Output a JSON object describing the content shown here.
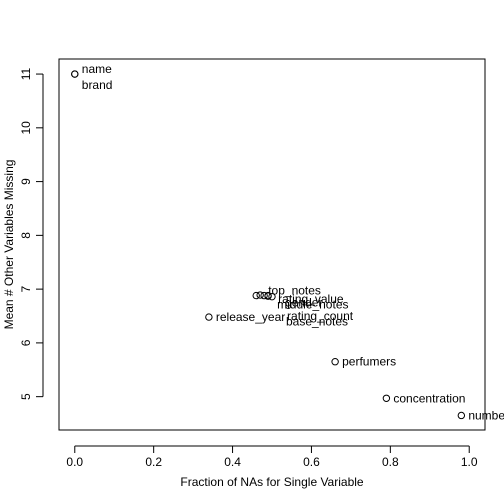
{
  "chart_data": {
    "type": "scatter",
    "title": "",
    "xlabel": "Fraction of NAs for Single Variable",
    "ylabel": "Mean # Other Variables Missing",
    "xlim": [
      -0.04,
      1.04
    ],
    "ylim": [
      4.38,
      11.28
    ],
    "x_ticks": [
      "0.0",
      "0.2",
      "0.4",
      "0.6",
      "0.8",
      "1.0"
    ],
    "y_ticks": [
      "5",
      "6",
      "7",
      "8",
      "9",
      "10",
      "11"
    ],
    "grid": false,
    "points": [
      {
        "label": "name",
        "x": 0.0,
        "y": 11.0
      },
      {
        "label": "brand",
        "x": 0.0,
        "y": 11.0
      },
      {
        "label": "release_year",
        "x": 0.34,
        "y": 6.48
      },
      {
        "label": "top_notes",
        "x": 0.46,
        "y": 6.88
      },
      {
        "label": "rating_value",
        "x": 0.47,
        "y": 6.89
      },
      {
        "label": "middle_notes",
        "x": 0.48,
        "y": 6.88
      },
      {
        "label": "gender",
        "x": 0.49,
        "y": 6.88
      },
      {
        "label": "rating_count",
        "x": 0.49,
        "y": 6.87
      },
      {
        "label": "base_notes",
        "x": 0.5,
        "y": 6.86
      },
      {
        "label": "perfumers",
        "x": 0.66,
        "y": 5.65
      },
      {
        "label": "concentration",
        "x": 0.79,
        "y": 4.97
      },
      {
        "label": "number",
        "x": 0.98,
        "y": 4.65
      }
    ]
  }
}
